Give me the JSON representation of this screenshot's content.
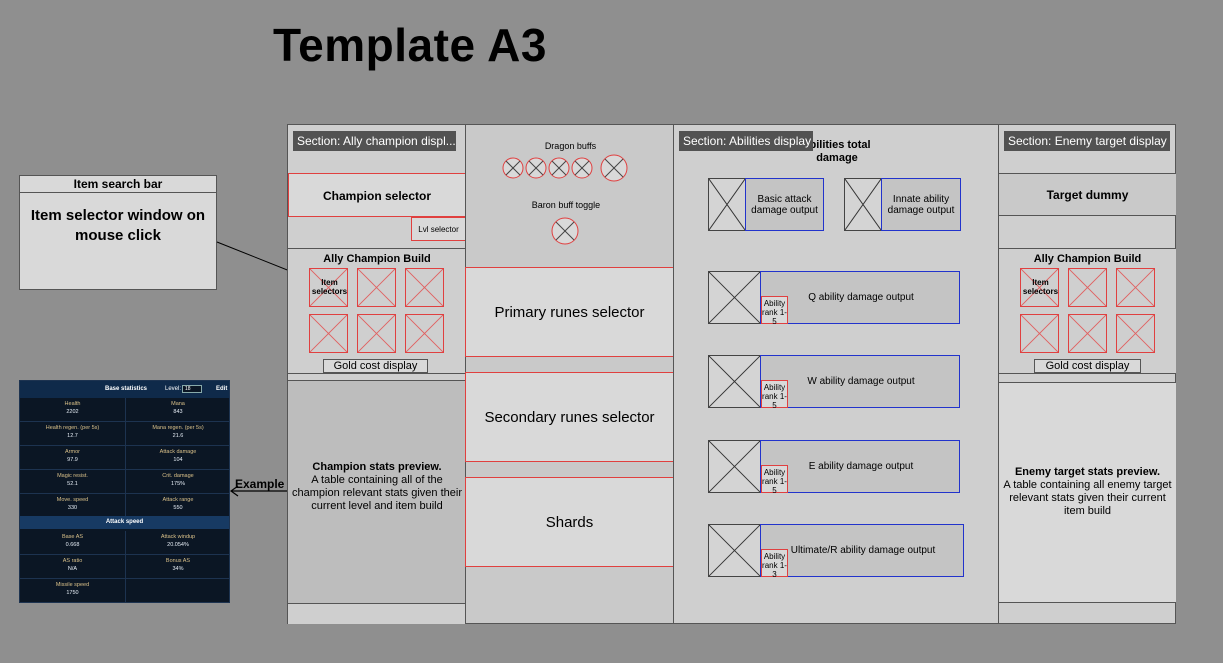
{
  "title": "Template A3",
  "search_panel": {
    "bar_label": "Item search bar",
    "window_label": "Item selector window on mouse click"
  },
  "example_label": "Example",
  "stats_table": {
    "header_title": "Base statistics",
    "level_label": "Level:",
    "level_value": "18",
    "edit_label": "Edit",
    "rows": [
      {
        "left_key": "Health",
        "left_val": "2202",
        "right_key": "Mana",
        "right_val": "843"
      },
      {
        "left_key": "Health regen. (per 5s)",
        "left_val": "12.7",
        "right_key": "Mana regen. (per 5s)",
        "right_val": "21.6"
      },
      {
        "left_key": "Armor",
        "left_val": "97.9",
        "right_key": "Attack damage",
        "right_val": "104"
      },
      {
        "left_key": "Magic resist.",
        "left_val": "52.1",
        "right_key": "Crit. damage",
        "right_val": "175%"
      },
      {
        "left_key": "Move. speed",
        "left_val": "330",
        "right_key": "Attack range",
        "right_val": "550"
      }
    ],
    "attack_speed_header": "Attack speed",
    "as_rows": [
      {
        "left_key": "Base AS",
        "left_val": "0.668",
        "right_key": "Attack windup",
        "right_val": "20.054%"
      },
      {
        "left_key": "AS ratio",
        "left_val": "N/A",
        "right_key": "Bonus AS",
        "right_val": "34%"
      },
      {
        "left_key": "Missile speed",
        "left_val": "1750",
        "right_key": "",
        "right_val": ""
      }
    ]
  },
  "ally": {
    "section_tag": "Section: Ally champion displ...",
    "champion_selector": "Champion selector",
    "lvl_selector": "Lvl selector",
    "build_title": "Ally Champion Build",
    "item_selectors_label": "Item selectors",
    "gold_cost": "Gold cost display",
    "stats_title": "Champion stats preview.",
    "stats_desc": "A table containing all of the champion relevant stats given their current level and item build"
  },
  "middle": {
    "dragon_buffs": "Dragon buffs",
    "baron_toggle": "Baron buff toggle",
    "primary_runes": "Primary runes selector",
    "secondary_runes": "Secondary runes selector",
    "shards": "Shards"
  },
  "abilities": {
    "section_tag": "Section: Abilities display",
    "total_damage": "abilities total damage",
    "basic_attack": "Basic attack damage output",
    "innate": "Innate ability damage output",
    "rows": [
      {
        "label": "Q ability damage output",
        "rank": "Ability rank 1-5"
      },
      {
        "label": "W ability damage output",
        "rank": "Ability rank 1-5"
      },
      {
        "label": "E ability damage output",
        "rank": "Ability rank 1-5"
      },
      {
        "label": "Ultimate/R ability damage output",
        "rank": "Ability rank 1-3"
      }
    ]
  },
  "enemy": {
    "section_tag": "Section: Enemy target display",
    "target_dummy": "Target dummy",
    "build_title": "Ally Champion Build",
    "item_selectors_label": "Item selectors",
    "gold_cost": "Gold cost display",
    "stats_title": "Enemy target stats preview.",
    "stats_desc": "A table containing all enemy target relevant stats given their current item build"
  },
  "colors": {
    "background": "#8f8f8f",
    "red_outline": "#e0403f",
    "blue_outline": "#2233cc",
    "section_tag": "#525252"
  }
}
